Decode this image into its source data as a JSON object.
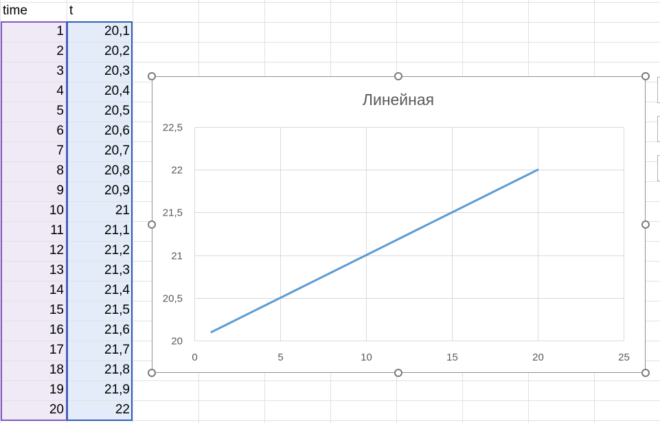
{
  "sheet": {
    "headers": [
      "time",
      "t"
    ],
    "rows": [
      [
        "1",
        "20,1"
      ],
      [
        "2",
        "20,2"
      ],
      [
        "3",
        "20,3"
      ],
      [
        "4",
        "20,4"
      ],
      [
        "5",
        "20,5"
      ],
      [
        "6",
        "20,6"
      ],
      [
        "7",
        "20,7"
      ],
      [
        "8",
        "20,8"
      ],
      [
        "9",
        "20,9"
      ],
      [
        "10",
        "21"
      ],
      [
        "11",
        "21,1"
      ],
      [
        "12",
        "21,2"
      ],
      [
        "13",
        "21,3"
      ],
      [
        "14",
        "21,4"
      ],
      [
        "15",
        "21,5"
      ],
      [
        "16",
        "21,6"
      ],
      [
        "17",
        "21,7"
      ],
      [
        "18",
        "21,8"
      ],
      [
        "19",
        "21,9"
      ],
      [
        "20",
        "22"
      ]
    ],
    "colors": {
      "gridline": "#e1e1e1",
      "x_range_fill": "#efeaf6",
      "x_range_border": "#7e57c2",
      "y_range_fill": "#e3ecf8",
      "y_range_border": "#2f5fb8"
    }
  },
  "chart_data": {
    "type": "scatter",
    "title": "Линейная",
    "xlabel": "",
    "ylabel": "",
    "xlim": [
      0,
      25
    ],
    "ylim": [
      20,
      22.5
    ],
    "x_ticks": [
      "0",
      "5",
      "10",
      "15",
      "20",
      "25"
    ],
    "y_ticks": [
      "20",
      "20,5",
      "21",
      "21,5",
      "22",
      "22,5"
    ],
    "grid": true,
    "series": [
      {
        "x": [
          1,
          2,
          3,
          4,
          5,
          6,
          7,
          8,
          9,
          10,
          11,
          12,
          13,
          14,
          15,
          16,
          17,
          18,
          19,
          20
        ],
        "y": [
          20.1,
          20.2,
          20.3,
          20.4,
          20.5,
          20.6,
          20.7,
          20.8,
          20.9,
          21,
          21.1,
          21.2,
          21.3,
          21.4,
          21.5,
          21.6,
          21.7,
          21.8,
          21.9,
          22
        ],
        "color": "#5b9bd5",
        "style": "smooth-line-no-markers"
      }
    ]
  }
}
